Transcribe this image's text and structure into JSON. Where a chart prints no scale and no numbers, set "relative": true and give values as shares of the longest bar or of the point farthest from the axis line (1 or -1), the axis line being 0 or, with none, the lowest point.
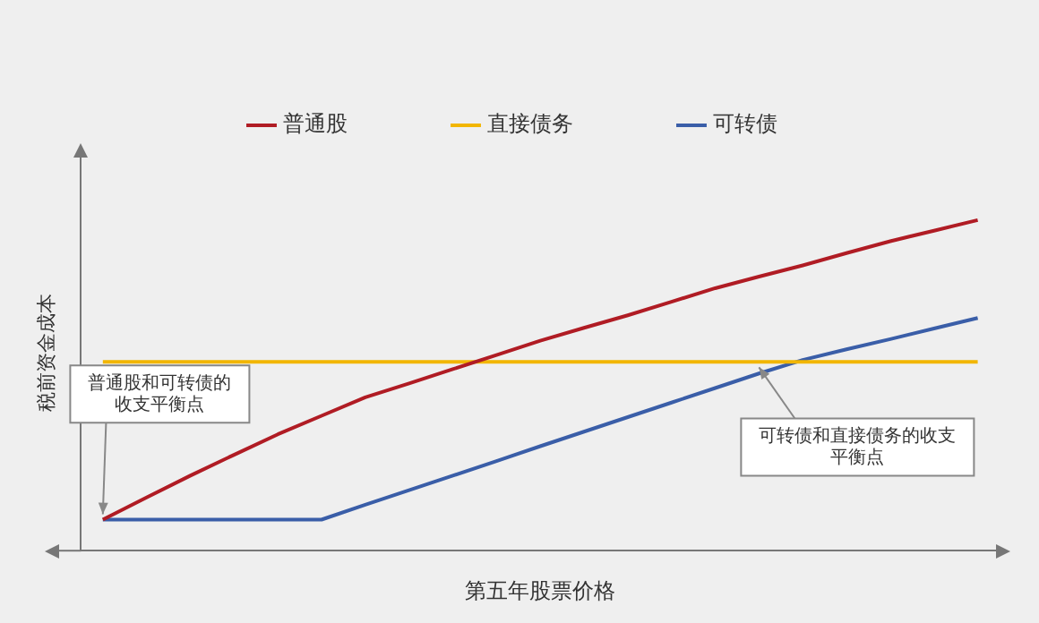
{
  "chart_data": {
    "type": "line",
    "relative": true,
    "xlabel": "第五年股票价格",
    "ylabel": "税前资金成本",
    "legend": "top",
    "marker": "none",
    "line_style": "solid",
    "categories": [
      null,
      null,
      null,
      null,
      null,
      null,
      null,
      null,
      null,
      null,
      null,
      null,
      null,
      null,
      null,
      null,
      null,
      null,
      null,
      null,
      null
    ],
    "series": [
      {
        "name": "普通股",
        "color": "#b01c24",
        "values": [
          0.094,
          0.161,
          0.227,
          0.29,
          0.352,
          0.408,
          0.464,
          0.506,
          0.549,
          0.592,
          0.635,
          0.674,
          0.712,
          0.753,
          0.794,
          0.829,
          0.863,
          0.9,
          0.936,
          0.968,
          1
        ]
      },
      {
        "name": "直接债务",
        "color": "#f2b600",
        "values": [
          0.571,
          0.571,
          0.571,
          0.571,
          0.571,
          0.571,
          0.571,
          0.571,
          0.571,
          0.571,
          0.571,
          0.571,
          0.571,
          0.571,
          0.571,
          0.571,
          0.571,
          0.571,
          0.571,
          0.571,
          0.571
        ]
      },
      {
        "name": "可转债",
        "color": "#3a5ea8",
        "values": [
          0.094,
          0.094,
          0.094,
          0.094,
          0.094,
          0.094,
          0.139,
          0.183,
          0.227,
          0.271,
          0.316,
          0.36,
          0.404,
          0.448,
          0.492,
          0.536,
          0.577,
          0.609,
          0.64,
          0.672,
          0.704
        ]
      }
    ],
    "annotations": [
      "普通股和可转债的收支平衡点",
      "可转债和直接债务的收支平衡点"
    ]
  }
}
